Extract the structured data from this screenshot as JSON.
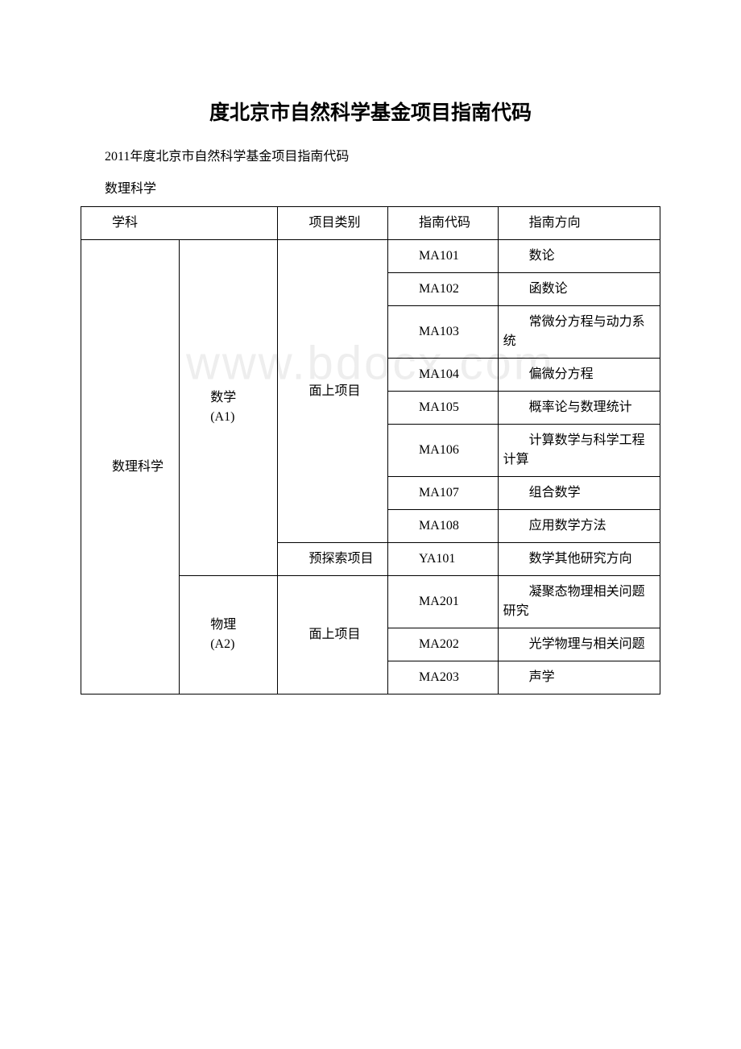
{
  "title": "度北京市自然科学基金项目指南代码",
  "subtitle": "2011年度北京市自然科学基金项目指南代码",
  "section": "数理科学",
  "watermark": "www.bdocx.com",
  "table": {
    "header": {
      "col1": "学科",
      "col2": "",
      "col3": "项目类别",
      "col4": "指南代码",
      "col5": "指南方向"
    },
    "category": "数理科学",
    "subjects": [
      {
        "name": "数学",
        "code": "(A1)",
        "groups": [
          {
            "project_type": "面上项目",
            "rows": [
              {
                "code": "MA101",
                "direction": "数论"
              },
              {
                "code": "MA102",
                "direction": "函数论"
              },
              {
                "code": "MA103",
                "direction": "常微分方程与动力系统"
              },
              {
                "code": "MA104",
                "direction": "偏微分方程"
              },
              {
                "code": "MA105",
                "direction": "概率论与数理统计"
              },
              {
                "code": "MA106",
                "direction": "计算数学与科学工程计算"
              },
              {
                "code": "MA107",
                "direction": "组合数学"
              },
              {
                "code": "MA108",
                "direction": "应用数学方法"
              }
            ]
          },
          {
            "project_type": "预探索项目",
            "rows": [
              {
                "code": "YA101",
                "direction": "数学其他研究方向"
              }
            ]
          }
        ]
      },
      {
        "name": "物理",
        "code": "(A2)",
        "groups": [
          {
            "project_type": "面上项目",
            "rows": [
              {
                "code": "MA201",
                "direction": "凝聚态物理相关问题研究"
              },
              {
                "code": "MA202",
                "direction": "光学物理与相关问题"
              },
              {
                "code": "MA203",
                "direction": "声学"
              }
            ]
          }
        ]
      }
    ]
  },
  "styles": {
    "background_color": "#ffffff",
    "text_color": "#000000",
    "border_color": "#000000",
    "watermark_color": "#eeeeee",
    "title_fontsize": 25,
    "body_fontsize": 16,
    "watermark_fontsize": 58
  }
}
